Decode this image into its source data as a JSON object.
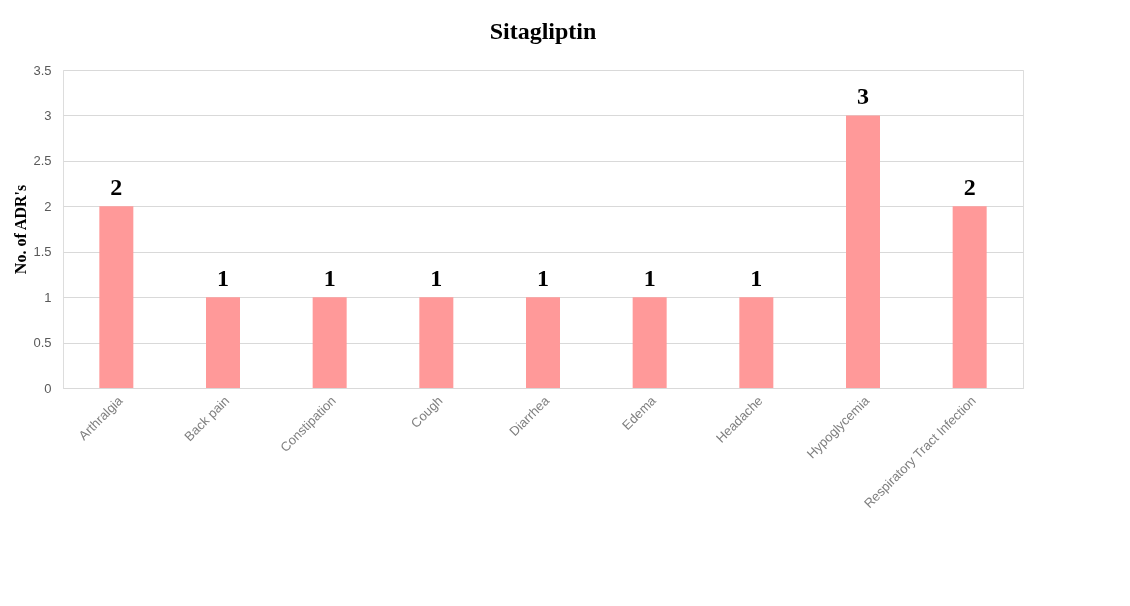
{
  "chart_data": {
    "type": "bar",
    "title": "Sitagliptin",
    "ylabel": "No. of ADR's",
    "categories": [
      "Arthralgia",
      "Back pain",
      "Constipation",
      "Cough",
      "Diarrhea",
      "Edema",
      "Headache",
      "Hypoglycemia",
      "Respiratory Tract Infection"
    ],
    "values": [
      2,
      1,
      1,
      1,
      1,
      1,
      1,
      3,
      2
    ],
    "color": "#ff9999",
    "ylim": [
      0,
      3.5
    ],
    "yticks": [
      0,
      0.5,
      1,
      1.5,
      2,
      2.5,
      3,
      3.5
    ],
    "grid": "y",
    "data_labels": true
  }
}
